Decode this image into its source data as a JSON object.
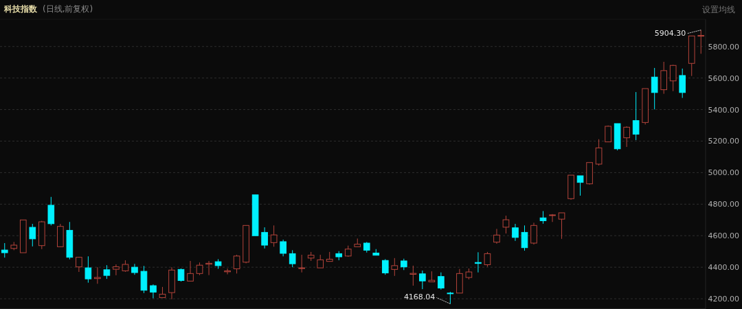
{
  "chart_data": {
    "type": "candlestick",
    "title": "科技指数",
    "subtitle": "(日线,前复权)",
    "categories": [
      null,
      null,
      null,
      null,
      null,
      null,
      null,
      null,
      null,
      null,
      null,
      null,
      null,
      null,
      null,
      null,
      null,
      null,
      null,
      null,
      null,
      null,
      null,
      null,
      null,
      null,
      null,
      null,
      null,
      null,
      null,
      null,
      null,
      null,
      null,
      null,
      null,
      null,
      null,
      null,
      null,
      null,
      null,
      null,
      null,
      null,
      null,
      null,
      null,
      null,
      null,
      null,
      null,
      null,
      null,
      null,
      null,
      null,
      null,
      null,
      null,
      null,
      null,
      null,
      null,
      null,
      null,
      null,
      null,
      null,
      null,
      null,
      null,
      null,
      null,
      null
    ],
    "ohlc": [
      [
        4509,
        4553,
        4461,
        4492
      ],
      [
        4519,
        4560,
        4508,
        4540
      ],
      [
        4492,
        4700,
        4492,
        4700
      ],
      [
        4653,
        4675,
        4532,
        4580
      ],
      [
        4537,
        4694,
        4515,
        4688
      ],
      [
        4793,
        4846,
        4665,
        4676
      ],
      [
        4530,
        4675,
        4530,
        4659
      ],
      [
        4634,
        4687,
        4450,
        4463
      ],
      [
        4402,
        4466,
        4370,
        4463
      ],
      [
        4396,
        4469,
        4302,
        4326
      ],
      [
        4328,
        4400,
        4295,
        4335
      ],
      [
        4384,
        4413,
        4326,
        4348
      ],
      [
        4387,
        4418,
        4349,
        4403
      ],
      [
        4377,
        4444,
        4371,
        4418
      ],
      [
        4400,
        4421,
        4352,
        4366
      ],
      [
        4374,
        4408,
        4236,
        4254
      ],
      [
        4283,
        4291,
        4203,
        4242
      ],
      [
        4207,
        4275,
        4207,
        4229
      ],
      [
        4239,
        4400,
        4197,
        4382
      ],
      [
        4386,
        4392,
        4309,
        4316
      ],
      [
        4312,
        4440,
        4312,
        4360
      ],
      [
        4360,
        4430,
        4350,
        4413
      ],
      [
        4419,
        4440,
        4350,
        4425
      ],
      [
        4435,
        4451,
        4390,
        4410
      ],
      [
        4371,
        4392,
        4355,
        4377
      ],
      [
        4390,
        4479,
        4360,
        4471
      ],
      [
        4432,
        4665,
        4425,
        4665
      ],
      [
        4859,
        4859,
        4600,
        4600
      ],
      [
        4621,
        4653,
        4519,
        4540
      ],
      [
        4556,
        4665,
        4530,
        4605
      ],
      [
        4562,
        4575,
        4469,
        4488
      ],
      [
        4486,
        4508,
        4400,
        4422
      ],
      [
        4392,
        4479,
        4367,
        4396
      ],
      [
        4458,
        4497,
        4440,
        4476
      ],
      [
        4396,
        4479,
        4396,
        4447
      ],
      [
        4437,
        4497,
        4437,
        4451
      ],
      [
        4486,
        4502,
        4444,
        4466
      ],
      [
        4471,
        4537,
        4466,
        4515
      ],
      [
        4530,
        4582,
        4530,
        4546
      ],
      [
        4553,
        4560,
        4493,
        4508
      ],
      [
        4490,
        4515,
        4476,
        4476
      ],
      [
        4443,
        4451,
        4352,
        4364
      ],
      [
        4386,
        4458,
        4345,
        4410
      ],
      [
        4440,
        4454,
        4382,
        4402
      ],
      [
        4355,
        4410,
        4283,
        4361
      ],
      [
        4358,
        4379,
        4261,
        4313
      ],
      [
        4307,
        4374,
        4307,
        4317
      ],
      [
        4341,
        4367,
        4258,
        4268
      ],
      [
        4236,
        4244,
        4168.04,
        4233
      ],
      [
        4236,
        4389,
        4236,
        4360
      ],
      [
        4335,
        4392,
        4323,
        4370
      ],
      [
        4430,
        4495,
        4367,
        4424
      ],
      [
        4416,
        4497,
        4403,
        4486
      ],
      [
        4559,
        4643,
        4549,
        4604
      ],
      [
        4654,
        4727,
        4614,
        4701
      ],
      [
        4650,
        4675,
        4567,
        4589
      ],
      [
        4621,
        4665,
        4505,
        4524
      ],
      [
        4553,
        4682,
        4544,
        4665
      ],
      [
        4713,
        4756,
        4676,
        4695
      ],
      [
        4729,
        4737,
        4687,
        4732
      ],
      [
        4705,
        4745,
        4580,
        4745
      ],
      [
        4835,
        4984,
        4828,
        4984
      ],
      [
        4980,
        4980,
        4854,
        4938
      ],
      [
        4929,
        5064,
        4924,
        5064
      ],
      [
        5054,
        5212,
        5045,
        5157
      ],
      [
        5195,
        5299,
        5195,
        5294
      ],
      [
        5311,
        5311,
        5141,
        5151
      ],
      [
        5221,
        5294,
        5163,
        5288
      ],
      [
        5330,
        5511,
        5206,
        5244
      ],
      [
        5318,
        5533,
        5305,
        5533
      ],
      [
        5606,
        5664,
        5401,
        5508
      ],
      [
        5526,
        5703,
        5500,
        5647
      ],
      [
        5582,
        5684,
        5517,
        5680
      ],
      [
        5616,
        5660,
        5474,
        5508
      ],
      [
        5693,
        5867,
        5613,
        5867
      ],
      [
        5866,
        5904.3,
        5754,
        5870
      ]
    ],
    "colors": [
      "#00f0ff",
      "#b5443b",
      "#b5443b",
      "#00f0ff",
      "#b5443b",
      "#00f0ff",
      "#b5443b",
      "#00f0ff",
      "#b5443b",
      "#00f0ff",
      "#b5443b",
      "#00f0ff",
      "#b5443b",
      "#b5443b",
      "#00f0ff",
      "#00f0ff",
      "#00f0ff",
      "#b5443b",
      "#b5443b",
      "#00f0ff",
      "#b5443b",
      "#b5443b",
      "#b5443b",
      "#00f0ff",
      "#b5443b",
      "#b5443b",
      "#b5443b",
      "#00f0ff",
      "#00f0ff",
      "#b5443b",
      "#00f0ff",
      "#00f0ff",
      "#b5443b",
      "#b5443b",
      "#b5443b",
      "#b5443b",
      "#00f0ff",
      "#b5443b",
      "#b5443b",
      "#00f0ff",
      "#00f0ff",
      "#00f0ff",
      "#b5443b",
      "#00f0ff",
      "#b5443b",
      "#00f0ff",
      "#b5443b",
      "#00f0ff",
      "#00f0ff",
      "#b5443b",
      "#b5443b",
      "#00f0ff",
      "#b5443b",
      "#b5443b",
      "#b5443b",
      "#00f0ff",
      "#00f0ff",
      "#b5443b",
      "#00f0ff",
      "#b5443b",
      "#b5443b",
      "#b5443b",
      "#00f0ff",
      "#b5443b",
      "#b5443b",
      "#b5443b",
      "#00f0ff",
      "#b5443b",
      "#00f0ff",
      "#b5443b",
      "#00f0ff",
      "#b5443b",
      "#b5443b",
      "#00f0ff",
      "#b5443b",
      "#b5443b"
    ],
    "ylim": [
      4135,
      5973
    ],
    "yticks": [
      {
        "value": 4200,
        "label": "4200.00"
      },
      {
        "value": 4400,
        "label": "4400.00"
      },
      {
        "value": 4600,
        "label": "4600.00"
      },
      {
        "value": 4800,
        "label": "4800.00"
      },
      {
        "value": 5000,
        "label": "5000.00"
      },
      {
        "value": 5200,
        "label": "5200.00"
      },
      {
        "value": 5400,
        "label": "5400.00"
      },
      {
        "value": 5600,
        "label": "5600.00"
      },
      {
        "value": 5800,
        "label": "5800.00"
      }
    ],
    "grid": "y",
    "annotations": [
      "5904.30",
      "4168.04",
      "设置均线"
    ]
  }
}
